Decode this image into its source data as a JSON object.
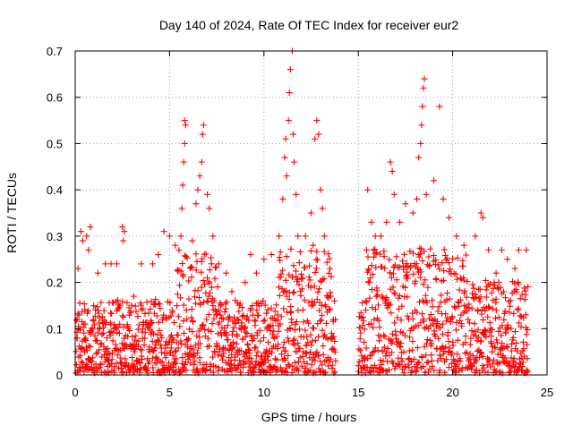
{
  "chart_data": {
    "type": "scatter",
    "title": "Day 140 of 2024, Rate Of TEC Index for receiver eur2",
    "xlabel": "GPS time / hours",
    "ylabel": "ROTI / TECUs",
    "xlim": [
      0,
      25
    ],
    "ylim": [
      0,
      0.7
    ],
    "xticks": [
      0,
      5,
      10,
      15,
      20,
      25
    ],
    "xtick_labels": [
      "0",
      "5",
      "10",
      "15",
      "20",
      "25"
    ],
    "yticks": [
      0,
      0.1,
      0.2,
      0.3,
      0.4,
      0.5,
      0.6,
      0.7
    ],
    "ytick_labels": [
      "0",
      "0.1",
      "0.2",
      "0.3",
      "0.4",
      "0.5",
      "0.6",
      "0.7"
    ],
    "grid": true,
    "marker": "+",
    "color": "#ff0000",
    "data_gaps_hours": [
      [
        13.8,
        15.0
      ]
    ],
    "series": [
      {
        "name": "ROTI",
        "points": [
          [
            0.1,
            0.12
          ],
          [
            0.15,
            0.23
          ],
          [
            0.3,
            0.31
          ],
          [
            0.4,
            0.29
          ],
          [
            0.5,
            0.05
          ],
          [
            0.6,
            0.3
          ],
          [
            0.7,
            0.27
          ],
          [
            0.8,
            0.32
          ],
          [
            1.2,
            0.22
          ],
          [
            1.6,
            0.24
          ],
          [
            1.9,
            0.24
          ],
          [
            2.2,
            0.24
          ],
          [
            2.5,
            0.32
          ],
          [
            2.6,
            0.31
          ],
          [
            2.55,
            0.29
          ],
          [
            3.1,
            0.17
          ],
          [
            3.5,
            0.24
          ],
          [
            4.1,
            0.24
          ],
          [
            4.4,
            0.26
          ],
          [
            4.7,
            0.31
          ],
          [
            5.0,
            0.3
          ],
          [
            5.3,
            0.28
          ],
          [
            5.5,
            0.27
          ],
          [
            5.6,
            0.3
          ],
          [
            5.65,
            0.36
          ],
          [
            5.7,
            0.41
          ],
          [
            5.75,
            0.46
          ],
          [
            5.8,
            0.5
          ],
          [
            5.85,
            0.54
          ],
          [
            5.8,
            0.55
          ],
          [
            6.2,
            0.29
          ],
          [
            6.4,
            0.37
          ],
          [
            6.5,
            0.4
          ],
          [
            6.6,
            0.43
          ],
          [
            6.7,
            0.46
          ],
          [
            6.75,
            0.52
          ],
          [
            6.8,
            0.54
          ],
          [
            7.0,
            0.39
          ],
          [
            7.1,
            0.36
          ],
          [
            7.3,
            0.3
          ],
          [
            7.6,
            0.24
          ],
          [
            8.0,
            0.22
          ],
          [
            8.3,
            0.18
          ],
          [
            8.6,
            0.12
          ],
          [
            9.0,
            0.2
          ],
          [
            9.3,
            0.26
          ],
          [
            9.6,
            0.22
          ],
          [
            10.0,
            0.25
          ],
          [
            10.4,
            0.26
          ],
          [
            10.8,
            0.3
          ],
          [
            11.0,
            0.38
          ],
          [
            11.1,
            0.47
          ],
          [
            11.15,
            0.51
          ],
          [
            11.2,
            0.43
          ],
          [
            11.3,
            0.55
          ],
          [
            11.35,
            0.61
          ],
          [
            11.4,
            0.66
          ],
          [
            11.5,
            0.7
          ],
          [
            11.55,
            0.52
          ],
          [
            11.6,
            0.46
          ],
          [
            11.7,
            0.39
          ],
          [
            11.8,
            0.3
          ],
          [
            12.2,
            0.3
          ],
          [
            12.5,
            0.35
          ],
          [
            12.6,
            0.28
          ],
          [
            12.7,
            0.51
          ],
          [
            12.8,
            0.55
          ],
          [
            12.9,
            0.52
          ],
          [
            13.0,
            0.4
          ],
          [
            13.1,
            0.36
          ],
          [
            13.2,
            0.3
          ],
          [
            13.5,
            0.23
          ],
          [
            15.5,
            0.4
          ],
          [
            15.7,
            0.33
          ],
          [
            15.9,
            0.3
          ],
          [
            16.2,
            0.3
          ],
          [
            16.5,
            0.33
          ],
          [
            16.7,
            0.46
          ],
          [
            16.8,
            0.44
          ],
          [
            16.9,
            0.39
          ],
          [
            17.2,
            0.33
          ],
          [
            17.5,
            0.37
          ],
          [
            17.9,
            0.35
          ],
          [
            18.1,
            0.38
          ],
          [
            18.2,
            0.47
          ],
          [
            18.3,
            0.5
          ],
          [
            18.35,
            0.54
          ],
          [
            18.4,
            0.58
          ],
          [
            18.45,
            0.62
          ],
          [
            18.5,
            0.64
          ],
          [
            18.6,
            0.39
          ],
          [
            19.0,
            0.42
          ],
          [
            19.3,
            0.58
          ],
          [
            19.5,
            0.38
          ],
          [
            19.8,
            0.34
          ],
          [
            20.2,
            0.3
          ],
          [
            20.6,
            0.28
          ],
          [
            21.2,
            0.3
          ],
          [
            21.5,
            0.35
          ],
          [
            21.6,
            0.34
          ],
          [
            21.9,
            0.27
          ],
          [
            22.3,
            0.22
          ],
          [
            22.6,
            0.27
          ],
          [
            22.9,
            0.25
          ],
          [
            23.3,
            0.23
          ],
          [
            23.5,
            0.27
          ],
          [
            23.9,
            0.27
          ]
        ]
      }
    ]
  }
}
